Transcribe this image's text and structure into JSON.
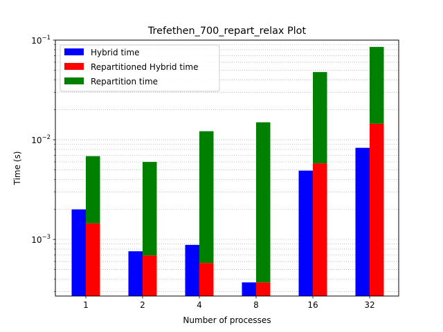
{
  "chart_data": {
    "type": "bar",
    "title": "Trefethen_700_repart_relax Plot",
    "xlabel": "Number of processes",
    "ylabel": "Time (s)",
    "yscale": "log",
    "ylim": [
      0.00027,
      0.1
    ],
    "grid": "y-minor-dotted",
    "legend_position": "top-left",
    "categories": [
      "1",
      "2",
      "4",
      "8",
      "16",
      "32"
    ],
    "y_ticks": [
      {
        "value": 0.001,
        "base": "10",
        "exp": "−3"
      },
      {
        "value": 0.01,
        "base": "10",
        "exp": "−2"
      },
      {
        "value": 0.1,
        "base": "10",
        "exp": "−1"
      }
    ],
    "series": [
      {
        "name": "Hybrid time",
        "color": "#0000ff",
        "values": [
          0.002,
          0.00076,
          0.00088,
          0.00037,
          0.0049,
          0.0083
        ]
      },
      {
        "name": "Repartitioned Hybrid time",
        "color": "#ff0000",
        "values": [
          0.00145,
          0.00069,
          0.00058,
          0.00037,
          0.0058,
          0.0145
        ]
      },
      {
        "name": "Repartition time",
        "color": "#008000",
        "values": [
          0.0054,
          0.0053,
          0.0116,
          0.0146,
          0.042,
          0.071
        ],
        "stacked_on": "Repartitioned Hybrid time"
      }
    ]
  }
}
